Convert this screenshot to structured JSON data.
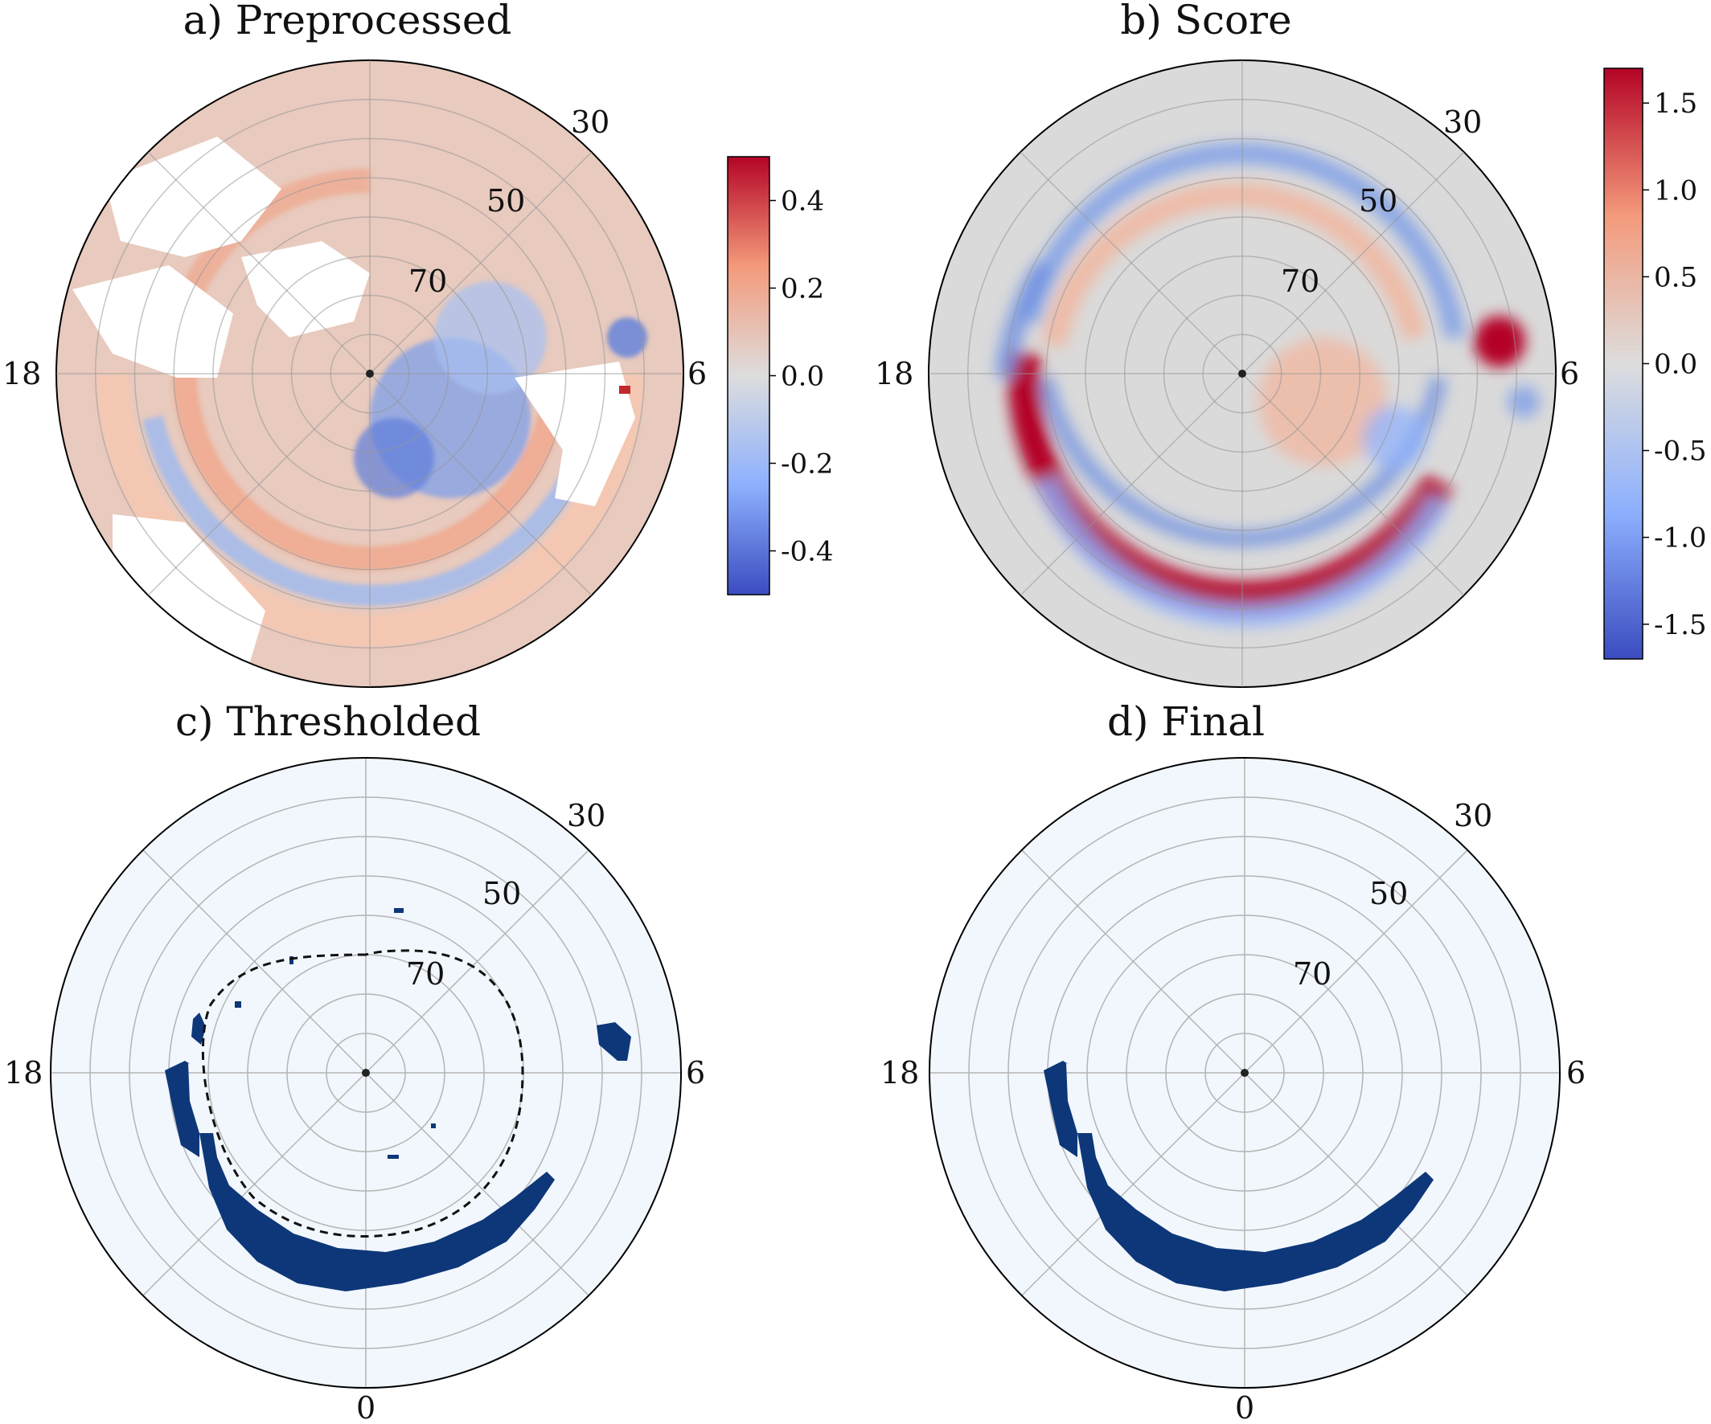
{
  "chart_data": [
    {
      "panel": "a",
      "title": "a) Preprocessed",
      "type": "heatmap",
      "projection": "polar",
      "latitude_ring_labels": [
        "30",
        "50",
        "70"
      ],
      "mlt_labels": {
        "left": "18",
        "right": "6"
      },
      "colormap": "coolwarm",
      "colorbar": {
        "range": [
          -0.5,
          0.5
        ],
        "ticks": [
          "0.4",
          "0.2",
          "0.0",
          "-0.2",
          "-0.4"
        ],
        "tick_values": [
          0.4,
          0.2,
          0.0,
          -0.2,
          -0.4
        ]
      }
    },
    {
      "panel": "b",
      "title": "b) Score",
      "type": "heatmap",
      "projection": "polar",
      "latitude_ring_labels": [
        "30",
        "50",
        "70"
      ],
      "mlt_labels": {
        "left": "18",
        "right": "6"
      },
      "colormap": "coolwarm",
      "colorbar": {
        "range": [
          -1.7,
          1.7
        ],
        "ticks": [
          "1.5",
          "1.0",
          "0.5",
          "0.0",
          "-0.5",
          "-1.0",
          "-1.5"
        ],
        "tick_values": [
          1.5,
          1.0,
          0.5,
          0.0,
          -0.5,
          -1.0,
          -1.5
        ]
      }
    },
    {
      "panel": "c",
      "title": "c) Thresholded",
      "type": "heatmap",
      "projection": "polar",
      "latitude_ring_labels": [
        "30",
        "50",
        "70"
      ],
      "mlt_labels": {
        "left": "18",
        "right": "6",
        "bottom": "0"
      },
      "colormap": "binary-blue",
      "dashed_contour": true
    },
    {
      "panel": "d",
      "title": "d) Final",
      "type": "heatmap",
      "projection": "polar",
      "latitude_ring_labels": [
        "30",
        "50",
        "70"
      ],
      "mlt_labels": {
        "left": "18",
        "right": "6",
        "bottom": "0"
      },
      "colormap": "binary-blue"
    }
  ],
  "colors": {
    "warm": "#c0282d",
    "cool": "#3b4cc0",
    "neutral": "#dcdcdc",
    "mask_fill": "#0d3778",
    "mask_bg": "#f2f7fd",
    "grid": "#b4b4b4"
  }
}
